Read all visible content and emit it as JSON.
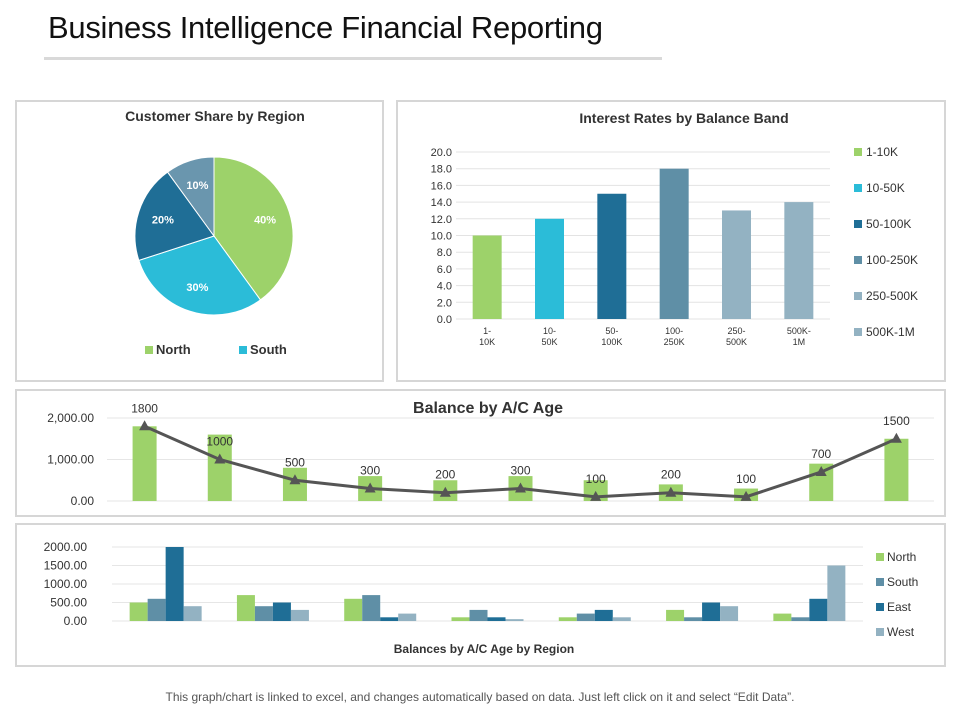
{
  "page": {
    "title": "Business Intelligence Financial Reporting",
    "footer": "This graph/chart is linked to excel, and changes automatically based on data. Just left click on it and select “Edit Data”."
  },
  "chart_data": [
    {
      "id": "pie",
      "type": "pie",
      "title": "Customer Share by Region",
      "slices": [
        {
          "label": "40%",
          "value": 40,
          "color": "#9dd26a"
        },
        {
          "label": "30%",
          "value": 30,
          "color": "#2bbcd8"
        },
        {
          "label": "20%",
          "value": 20,
          "color": "#1f6e96"
        },
        {
          "label": "10%",
          "value": 10,
          "color": "#6a96ae"
        }
      ],
      "legend": [
        {
          "name": "North",
          "color": "#9dd26a"
        },
        {
          "name": "South",
          "color": "#2bbcd8"
        }
      ],
      "legend_position": "bottom"
    },
    {
      "id": "interest",
      "type": "bar",
      "title": "Interest Rates by Balance Band",
      "categories": [
        [
          "1-",
          "10K"
        ],
        [
          "10-",
          "50K"
        ],
        [
          "50-",
          "100K"
        ],
        [
          "100-",
          "250K"
        ],
        [
          "250-",
          "500K"
        ],
        [
          "500K-",
          "1M"
        ]
      ],
      "values": [
        10,
        12,
        15,
        18,
        13,
        14
      ],
      "colors": [
        "#9dd26a",
        "#2bbcd8",
        "#1f6e96",
        "#5f8fa6",
        "#93b2c2",
        "#93b2c2"
      ],
      "yticks": [
        "0.0",
        "2.0",
        "4.0",
        "6.0",
        "8.0",
        "10.0",
        "12.0",
        "14.0",
        "16.0",
        "18.0",
        "20.0"
      ],
      "ylim": [
        0,
        20
      ],
      "grid": true,
      "legend": [
        {
          "name": "1-10K",
          "color": "#9dd26a"
        },
        {
          "name": "10-50K",
          "color": "#2bbcd8"
        },
        {
          "name": "50-100K",
          "color": "#1f6e96"
        },
        {
          "name": "100-250K",
          "color": "#5f8fa6"
        },
        {
          "name": "250-500K",
          "color": "#93b2c2"
        },
        {
          "name": "500K-1M",
          "color": "#93b2c2"
        }
      ],
      "legend_position": "right"
    },
    {
      "id": "balance",
      "type": "bar",
      "title": "Balance by A/C Age",
      "bar_values": [
        1800,
        1600,
        800,
        600,
        500,
        600,
        500,
        400,
        300,
        900,
        1500
      ],
      "line_values": [
        1800,
        1000,
        500,
        300,
        200,
        300,
        100,
        200,
        100,
        700,
        1500
      ],
      "line_labels": [
        "1800",
        "1000",
        "500",
        "300",
        "200",
        "300",
        "100",
        "200",
        "100",
        "700",
        "1500"
      ],
      "bar_color": "#9dd26a",
      "line_color": "#555555",
      "yticks": [
        "0.00",
        "1,000.00",
        "2,000.00"
      ],
      "ylim": [
        0,
        2000
      ],
      "grid": true
    },
    {
      "id": "region",
      "type": "bar",
      "title": "Balances by A/C Age by Region",
      "groups": 7,
      "series": [
        {
          "name": "North",
          "color": "#9dd26a",
          "values": [
            500,
            700,
            600,
            100,
            100,
            300,
            200
          ]
        },
        {
          "name": "South",
          "color": "#5f8fa6",
          "values": [
            600,
            400,
            700,
            300,
            200,
            100,
            100
          ]
        },
        {
          "name": "East",
          "color": "#1f6e96",
          "values": [
            2000,
            500,
            100,
            100,
            300,
            500,
            600
          ]
        },
        {
          "name": "West",
          "color": "#93b2c2",
          "values": [
            400,
            300,
            200,
            50,
            100,
            400,
            1500
          ]
        }
      ],
      "yticks": [
        "0.00",
        "500.00",
        "1000.00",
        "1500.00",
        "2000.00"
      ],
      "ylim": [
        0,
        2000
      ],
      "grid": true,
      "legend_position": "right"
    }
  ]
}
